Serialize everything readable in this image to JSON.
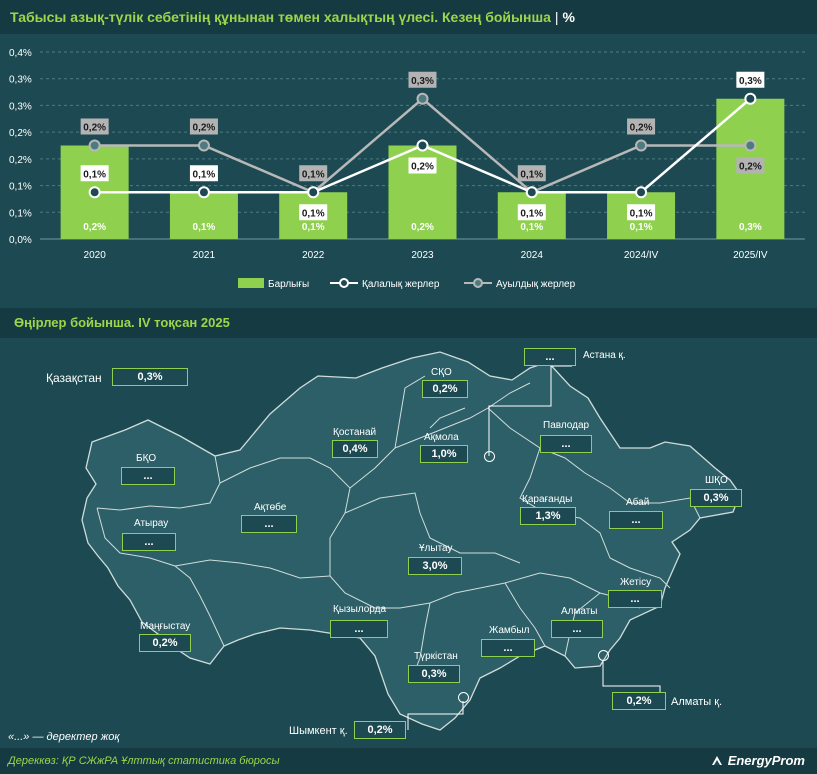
{
  "title": {
    "main": "Табысы азық-түлік себетінің құнынан төмен халықтың үлесі. Кезең бойынша",
    "separator": "|",
    "unit": "%"
  },
  "chart_data": {
    "type": "bar",
    "categories": [
      "2020",
      "2021",
      "2022",
      "2023",
      "2024",
      "2024/IV",
      "2025/IV"
    ],
    "ylim": [
      0,
      0.4
    ],
    "yticks": [
      "0,0%",
      "0,1%",
      "0,1%",
      "0,2%",
      "0,2%",
      "0,3%",
      "0,3%",
      "0,4%"
    ],
    "grid": true,
    "legend_position": "bottom",
    "series": [
      {
        "name": "Барлығы",
        "type": "bar",
        "color": "#8fd14f",
        "values": [
          0.2,
          0.1,
          0.1,
          0.2,
          0.1,
          0.1,
          0.3
        ],
        "labels": [
          "0,2%",
          "0,1%",
          "0,1%",
          "0,2%",
          "0,1%",
          "0,1%",
          "0,3%"
        ]
      },
      {
        "name": "Қалалық жерлер",
        "type": "line",
        "color": "#ffffff",
        "values": [
          0.1,
          0.1,
          0.1,
          0.2,
          0.1,
          0.1,
          0.3
        ],
        "labels": [
          "0,1%",
          "0,1%",
          "0,1%",
          "0,2%",
          "0,1%",
          "0,1%",
          "0,3%"
        ]
      },
      {
        "name": "Ауылдық жерлер",
        "type": "line",
        "color": "#b8b8b8",
        "values": [
          0.2,
          0.2,
          0.1,
          0.3,
          0.1,
          0.2,
          0.2
        ],
        "labels": [
          "0,2%",
          "0,2%",
          "0,1%",
          "0,3%",
          "0,1%",
          "0,2%",
          "0,2%"
        ]
      }
    ]
  },
  "regions_section": {
    "title": "Өңірлер бойынша. IV тоқсан 2025",
    "country": {
      "name": "Қазақстан",
      "value": "0,3%"
    },
    "regions": [
      {
        "name": "СҚО",
        "value": "0,2%"
      },
      {
        "name": "Астана қ.",
        "value": "..."
      },
      {
        "name": "Қостанай",
        "value": "0,4%"
      },
      {
        "name": "Ақмола",
        "value": "1,0%"
      },
      {
        "name": "Павлодар",
        "value": "..."
      },
      {
        "name": "БҚО",
        "value": "..."
      },
      {
        "name": "Ақтөбе",
        "value": "..."
      },
      {
        "name": "Қарағанды",
        "value": "1,3%"
      },
      {
        "name": "Абай",
        "value": "..."
      },
      {
        "name": "ШҚО",
        "value": "0,3%"
      },
      {
        "name": "Атырау",
        "value": "..."
      },
      {
        "name": "Ұлытау",
        "value": "3,0%"
      },
      {
        "name": "Жетісу",
        "value": "..."
      },
      {
        "name": "Маңғыстау",
        "value": "0,2%"
      },
      {
        "name": "Қызылорда",
        "value": "..."
      },
      {
        "name": "Жамбыл",
        "value": "..."
      },
      {
        "name": "Алматы",
        "value": "..."
      },
      {
        "name": "Түркістан",
        "value": "0,3%"
      },
      {
        "name": "Алматы қ.",
        "value": "0,2%"
      },
      {
        "name": "Шымкент қ.",
        "value": "0,2%"
      }
    ]
  },
  "note": "«...» — деректер жоқ",
  "source": "Дереккөз: ҚР СЖжРА Ұлттық статистика бюросы",
  "brand": "EnergyProm"
}
